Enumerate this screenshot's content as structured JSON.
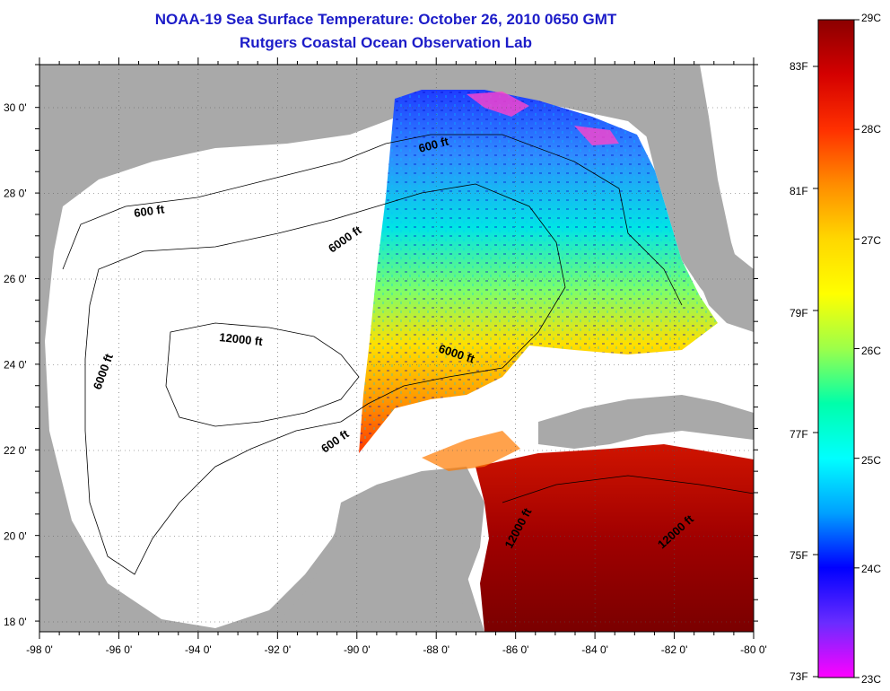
{
  "header": {
    "title": "NOAA-19 Sea Surface Temperature:  October 26, 2010 0650 GMT",
    "subtitle": "Rutgers Coastal Ocean Observation Lab"
  },
  "map": {
    "lat_ticks": [
      "30 0'",
      "28 0'",
      "26 0'",
      "24 0'",
      "22 0'",
      "20 0'",
      "18 0'"
    ],
    "lon_ticks": [
      "-98 0'",
      "-96 0'",
      "-94 0'",
      "-92 0'",
      "-90 0'",
      "-88 0'",
      "-86 0'",
      "-84 0'",
      "-82 0'",
      "-80 0'"
    ],
    "contour_labels": {
      "c600_west": "600 ft",
      "c600_north": "600 ft",
      "c600_south": "600 ft",
      "c6000_north": "6000 ft",
      "c6000_west": "6000 ft",
      "c6000_east": "6000 ft",
      "c12000_gulf": "12000 ft",
      "c12000_carib_a": "12000 ft",
      "c12000_carib_b": "12000 ft"
    },
    "colors": {
      "land": "#a9a9a9",
      "ocean_no_data": "#ffffff"
    }
  },
  "colorbar": {
    "celsius_labels": [
      "29C",
      "28C",
      "27C",
      "26C",
      "25C",
      "24C",
      "23C"
    ],
    "fahrenheit_labels": [
      "83F",
      "81F",
      "79F",
      "77F",
      "75F",
      "73F"
    ],
    "range_c": [
      23,
      29
    ],
    "gradient": [
      "#8b0000",
      "#d40000",
      "#ff3000",
      "#ff8c00",
      "#ffd700",
      "#ffff00",
      "#9cff4a",
      "#00ffaa",
      "#00ffff",
      "#00a0ff",
      "#0000ff",
      "#6a2cff",
      "#ff00ff"
    ]
  }
}
